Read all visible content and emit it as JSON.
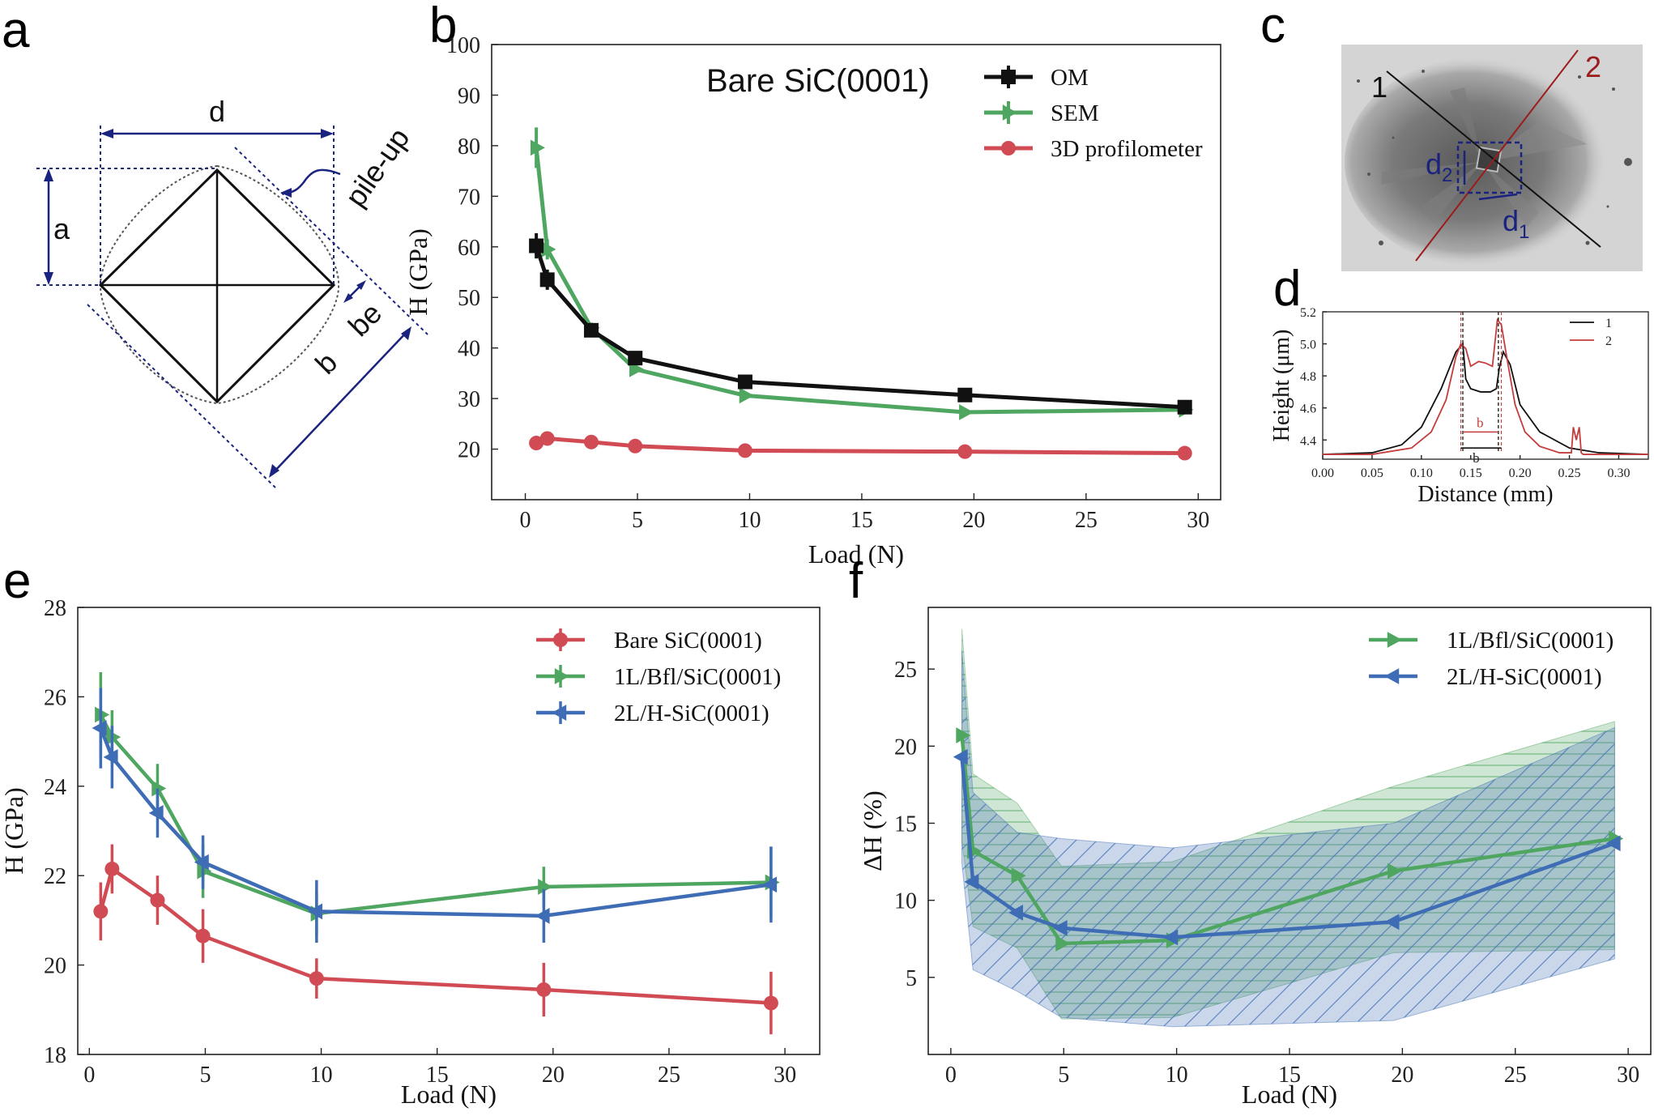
{
  "panels": {
    "a": {
      "letter": "a",
      "labels": {
        "d": "d",
        "a": "a",
        "b": "b",
        "be": "be",
        "pileup": "pile-up"
      }
    },
    "b": {
      "letter": "b",
      "annotation": "Bare SiC(0001)"
    },
    "c": {
      "letter": "c",
      "line1": "1",
      "line2": "2",
      "d1_main": "d",
      "d1_sub": "1",
      "d2_main": "d",
      "d2_sub": "2"
    },
    "d": {
      "letter": "d",
      "b1_main": "b",
      "b1_sub": "1",
      "b2_main": "b",
      "b2_sub": "2"
    },
    "e": {
      "letter": "e"
    },
    "f": {
      "letter": "f"
    }
  },
  "colors": {
    "black": "#111111",
    "green": "#4fa660",
    "red": "#d04b53",
    "blue": "#3f6db5",
    "navy": "#1a237e",
    "darkred": "#9b1c1c"
  },
  "chart_data": [
    {
      "id": "b",
      "type": "line",
      "xlabel": "Load (N)",
      "ylabel": "H (GPa)",
      "xlim": [
        -1.5,
        31
      ],
      "ylim": [
        10,
        100
      ],
      "xticks": [
        0,
        5,
        10,
        15,
        20,
        25,
        30
      ],
      "yticks": [
        20,
        30,
        40,
        50,
        60,
        70,
        80,
        90,
        100
      ],
      "legend_position": "top-right",
      "series": [
        {
          "name": "OM",
          "color": "#111111",
          "marker": "square",
          "x": [
            0.49,
            0.98,
            2.94,
            4.9,
            9.8,
            19.6,
            29.4
          ],
          "y": [
            60.2,
            53.5,
            43.5,
            38.0,
            33.3,
            30.7,
            28.3
          ],
          "err": [
            2.5,
            2,
            1,
            0.8,
            0.5,
            0.4,
            0.3
          ]
        },
        {
          "name": "SEM",
          "color": "#4fa660",
          "marker": "triangle-right",
          "x": [
            0.49,
            0.98,
            2.94,
            4.9,
            9.8,
            19.6,
            29.4
          ],
          "y": [
            79.6,
            59.5,
            44.0,
            35.8,
            30.6,
            27.3,
            27.8
          ],
          "err": [
            4,
            2,
            1,
            0.8,
            0.5,
            0.4,
            0.3
          ]
        },
        {
          "name": "3D profilometer",
          "color": "#d04b53",
          "marker": "circle",
          "x": [
            0.49,
            0.98,
            2.94,
            4.9,
            9.8,
            19.6,
            29.4
          ],
          "y": [
            21.2,
            22.1,
            21.4,
            20.6,
            19.7,
            19.5,
            19.2
          ],
          "err": [
            0,
            0,
            0,
            0,
            0,
            0,
            0
          ]
        }
      ]
    },
    {
      "id": "d",
      "type": "line",
      "xlabel": "Distance (mm)",
      "ylabel": "Height (μm)",
      "xlim": [
        0,
        0.33
      ],
      "ylim": [
        4.28,
        5.2
      ],
      "xticks": [
        "0.00",
        "0.05",
        "0.10",
        "0.15",
        "0.20",
        "0.25",
        "0.30"
      ],
      "yticks": [
        "4.4",
        "4.6",
        "4.8",
        "5.0",
        "5.2"
      ],
      "legend_position": "top-right",
      "series": [
        {
          "name": "1",
          "color": "#111111",
          "x": [
            0,
            0.05,
            0.08,
            0.1,
            0.12,
            0.135,
            0.142,
            0.145,
            0.15,
            0.16,
            0.17,
            0.176,
            0.179,
            0.183,
            0.19,
            0.2,
            0.22,
            0.25,
            0.28,
            0.33
          ],
          "y": [
            4.31,
            4.32,
            4.37,
            4.48,
            4.72,
            4.95,
            5.0,
            4.78,
            4.72,
            4.7,
            4.7,
            4.72,
            4.85,
            4.95,
            4.87,
            4.62,
            4.45,
            4.35,
            4.32,
            4.31
          ]
        },
        {
          "name": "2",
          "color": "#c43c3c",
          "x": [
            0,
            0.05,
            0.09,
            0.11,
            0.125,
            0.135,
            0.14,
            0.145,
            0.15,
            0.158,
            0.165,
            0.172,
            0.177,
            0.181,
            0.187,
            0.195,
            0.205,
            0.22,
            0.24,
            0.252,
            0.254,
            0.257,
            0.26,
            0.262,
            0.264,
            0.28,
            0.33
          ],
          "y": [
            4.31,
            4.31,
            4.35,
            4.45,
            4.65,
            4.92,
            5.0,
            4.97,
            4.86,
            4.89,
            4.88,
            4.86,
            5.15,
            5.12,
            4.9,
            4.62,
            4.45,
            4.36,
            4.32,
            4.32,
            4.48,
            4.4,
            4.48,
            4.32,
            4.31,
            4.31,
            4.31
          ]
        }
      ],
      "annotations": [
        "b2",
        "b1"
      ]
    },
    {
      "id": "e",
      "type": "line",
      "xlabel": "Load (N)",
      "ylabel": "H (GPa)",
      "xlim": [
        -0.5,
        31.5
      ],
      "ylim": [
        18,
        28
      ],
      "xticks": [
        0,
        5,
        10,
        15,
        20,
        25,
        30
      ],
      "yticks": [
        18,
        20,
        22,
        24,
        26,
        28
      ],
      "legend_position": "top-right",
      "series": [
        {
          "name": "Bare SiC(0001)",
          "color": "#d04b53",
          "marker": "circle",
          "x": [
            0.49,
            0.98,
            2.94,
            4.9,
            9.8,
            19.6,
            29.4
          ],
          "y": [
            21.2,
            22.15,
            21.45,
            20.65,
            19.7,
            19.45,
            19.15
          ],
          "err": [
            0.65,
            0.55,
            0.55,
            0.6,
            0.45,
            0.6,
            0.7
          ]
        },
        {
          "name": "1L/Bfl/SiC(0001)",
          "color": "#4fa660",
          "marker": "triangle-right",
          "x": [
            0.49,
            0.98,
            2.94,
            4.9,
            9.8,
            19.6,
            29.4
          ],
          "y": [
            25.6,
            25.1,
            23.95,
            22.1,
            21.15,
            21.75,
            21.85
          ],
          "err": [
            0.95,
            0.6,
            0.55,
            0.6,
            0.5,
            0.45,
            0.8
          ]
        },
        {
          "name": "2L/H-SiC(0001)",
          "color": "#3f6db5",
          "marker": "triangle-left",
          "x": [
            0.49,
            0.98,
            2.94,
            4.9,
            9.8,
            19.6,
            29.4
          ],
          "y": [
            25.3,
            24.65,
            23.4,
            22.3,
            21.2,
            21.1,
            21.8
          ],
          "err": [
            0.9,
            0.7,
            0.55,
            0.6,
            0.7,
            0.6,
            0.85
          ]
        }
      ]
    },
    {
      "id": "f",
      "type": "area",
      "xlabel": "Load (N)",
      "ylabel": "ΔH (%)",
      "xlim": [
        -1,
        31
      ],
      "ylim": [
        0,
        29
      ],
      "xticks": [
        0,
        5,
        10,
        15,
        20,
        25,
        30
      ],
      "yticks": [
        5,
        10,
        15,
        20,
        25
      ],
      "legend_position": "top-right",
      "series": [
        {
          "name": "1L/Bfl/SiC(0001)",
          "color": "#4fa660",
          "marker": "triangle-right",
          "x": [
            0.49,
            0.98,
            2.94,
            4.9,
            9.8,
            19.6,
            29.4
          ],
          "y": [
            20.7,
            13.2,
            11.6,
            7.2,
            7.4,
            11.9,
            14.0
          ],
          "upper": [
            27.6,
            18.2,
            16.3,
            12.2,
            12.5,
            17.4,
            21.6
          ],
          "lower": [
            13.8,
            8.3,
            6.9,
            2.3,
            2.4,
            6.6,
            6.8
          ]
        },
        {
          "name": "2L/H-SiC(0001)",
          "color": "#3f6db5",
          "marker": "triangle-left",
          "x": [
            0.49,
            0.98,
            2.94,
            4.9,
            9.8,
            19.6,
            29.4
          ],
          "y": [
            19.3,
            11.2,
            9.2,
            8.2,
            7.6,
            8.6,
            13.7
          ],
          "upper": [
            26.2,
            17.0,
            14.4,
            14.0,
            13.4,
            15.0,
            21.2
          ],
          "lower": [
            12.4,
            5.5,
            4.1,
            2.4,
            1.8,
            2.2,
            6.2
          ]
        }
      ]
    }
  ]
}
